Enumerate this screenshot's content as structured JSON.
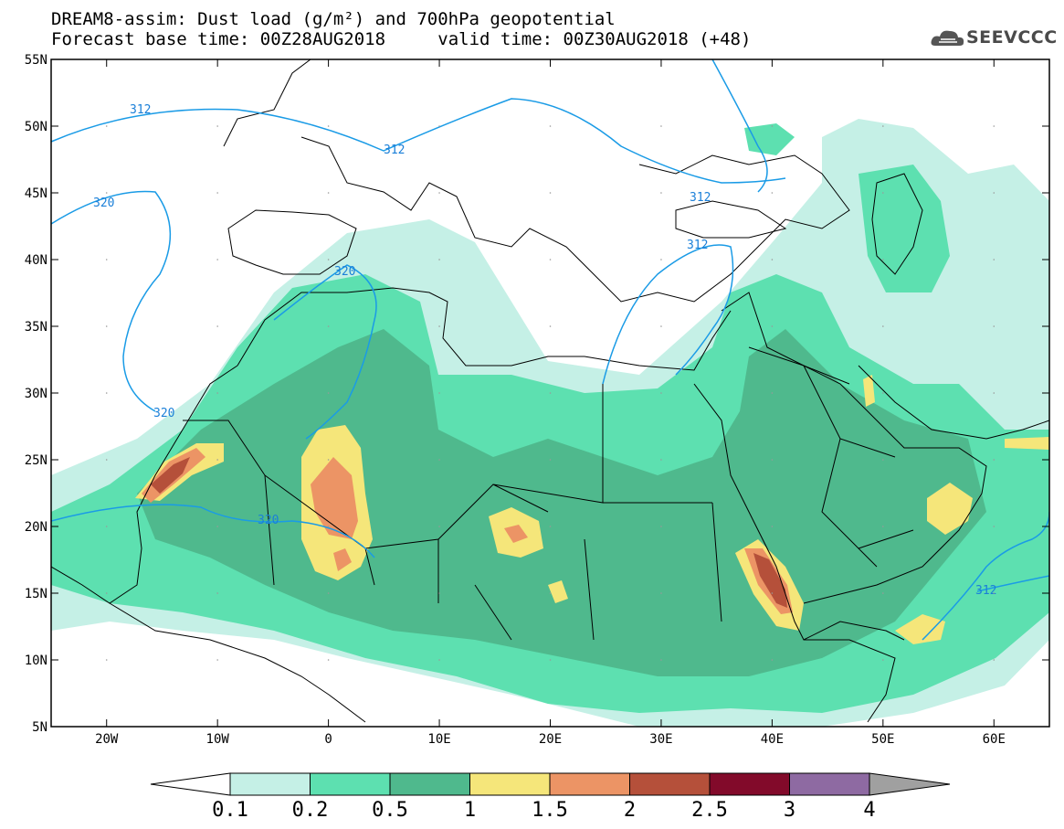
{
  "title": {
    "line1": "DREAM8-assim: Dust load (g/m²) and 700hPa geopotential",
    "line2_left": "Forecast base time: 00Z28AUG2018",
    "line2_right": "valid time: 00Z30AUG2018 (+48)"
  },
  "logo": {
    "text": "SEEVCCC",
    "icon": "cloud-logo-icon"
  },
  "map": {
    "projection": "lat-lon",
    "lon_range": [
      -25,
      65
    ],
    "lat_range": [
      5,
      55
    ],
    "lat_ticks": [
      "55N",
      "50N",
      "45N",
      "40N",
      "35N",
      "30N",
      "25N",
      "20N",
      "15N",
      "10N",
      "5N"
    ],
    "lon_ticks": [
      "20W",
      "10W",
      "0",
      "10E",
      "20E",
      "30E",
      "40E",
      "50E",
      "60E"
    ],
    "contour_color": "#1a9be6",
    "contour_labels": [
      "312",
      "312",
      "312",
      "312",
      "320",
      "320",
      "320",
      "320",
      "312"
    ]
  },
  "colorbar": {
    "labels": [
      "0.1",
      "0.2",
      "0.5",
      "1",
      "1.5",
      "2",
      "2.5",
      "3",
      "4"
    ],
    "colors": [
      "#c5f0e6",
      "#5de0b0",
      "#4fb98d",
      "#f5e67a",
      "#ec9465",
      "#b5503a",
      "#820a2a",
      "#8e6aa2",
      "#a0a0a0"
    ]
  }
}
